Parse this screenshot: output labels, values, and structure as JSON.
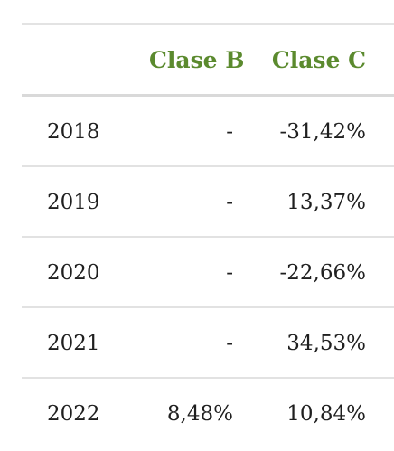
{
  "table": {
    "headers": {
      "class_b": "Clase B",
      "class_c": "Clase C"
    },
    "rows": [
      {
        "year": "2018",
        "class_b": "-",
        "class_c": "-31,42%"
      },
      {
        "year": "2019",
        "class_b": "-",
        "class_c": "13,37%"
      },
      {
        "year": "2020",
        "class_b": "-",
        "class_c": "-22,66%"
      },
      {
        "year": "2021",
        "class_b": "-",
        "class_c": "34,53%"
      },
      {
        "year": "2022",
        "class_b": "8,48%",
        "class_c": "10,84%"
      }
    ]
  },
  "colors": {
    "header_text": "#5b8a2e",
    "body_text": "#1f1f1f",
    "divider": "#e2e2e2"
  }
}
